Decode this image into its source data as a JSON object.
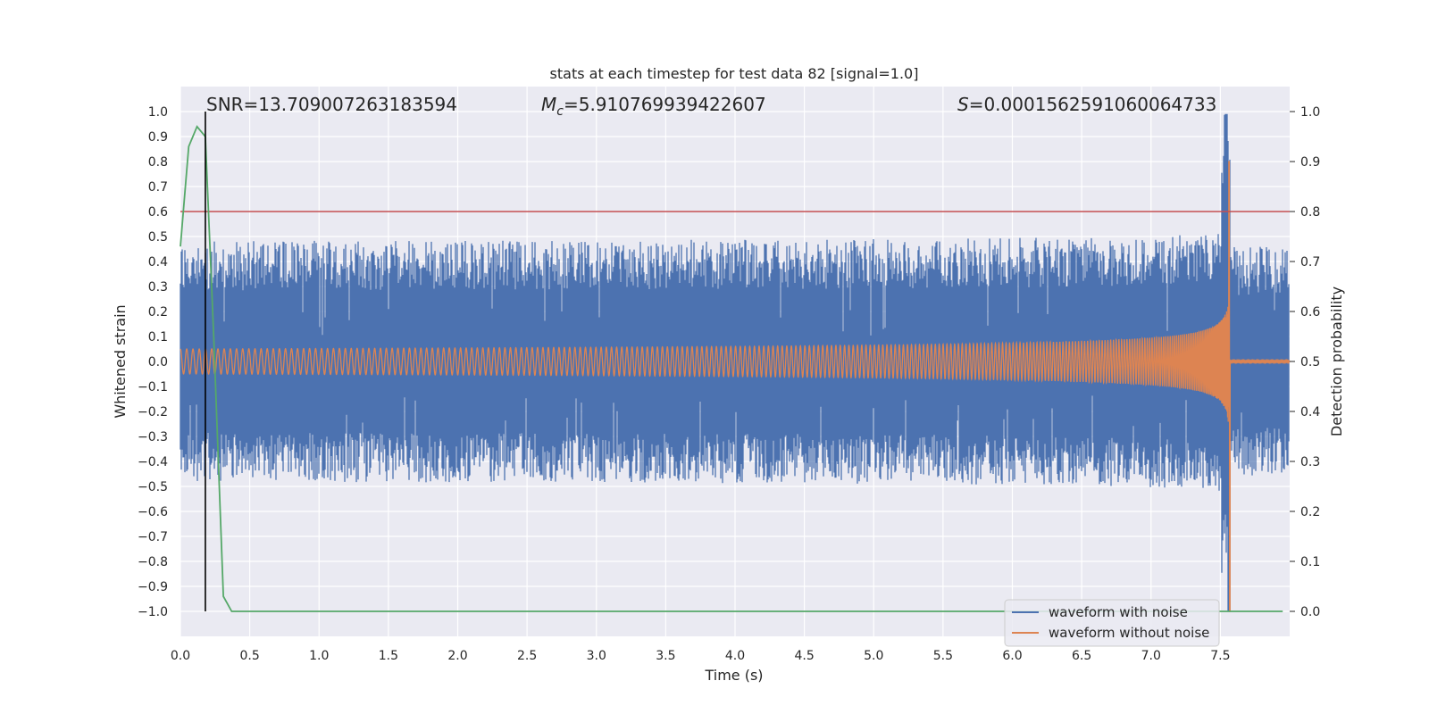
{
  "chart_data": {
    "type": "line",
    "title": "stats at each timestep for test data 82 [signal=1.0]",
    "xlabel": "Time (s)",
    "ylabel_left": "Whitened strain",
    "ylabel_right": "Detection probability",
    "xlim": [
      0.0,
      8.0
    ],
    "ylim_left": [
      -1.1,
      1.1
    ],
    "ylim_right": [
      -0.05,
      1.05
    ],
    "x_ticks": [
      "0.0",
      "0.5",
      "1.0",
      "1.5",
      "2.0",
      "2.5",
      "3.0",
      "3.5",
      "4.0",
      "4.5",
      "5.0",
      "5.5",
      "6.0",
      "6.5",
      "7.0",
      "7.5"
    ],
    "y_ticks_left": [
      "1.0",
      "0.9",
      "0.8",
      "0.7",
      "0.6",
      "0.5",
      "0.4",
      "0.3",
      "0.2",
      "0.1",
      "0.0",
      "−0.1",
      "−0.2",
      "−0.3",
      "−0.4",
      "−0.5",
      "−0.6",
      "−0.7",
      "−0.8",
      "−0.9",
      "−1.0"
    ],
    "y_ticks_right": [
      "1.0",
      "0.9",
      "0.8",
      "0.7",
      "0.6",
      "0.5",
      "0.4",
      "0.3",
      "0.2",
      "0.1",
      "0.0"
    ],
    "annotations": {
      "snr": "SNR=13.709007263183594",
      "mc_symbol": "M",
      "mc_sub": "c",
      "mc_value": "=5.910769939422607",
      "s_symbol": "S",
      "s_value": "=0.0001562591060064733"
    },
    "threshold_line": {
      "y": 0.8,
      "color": "#c44e52"
    },
    "marker_vline": {
      "x": 0.18,
      "color": "#000000"
    },
    "merger_time": 7.57,
    "series": [
      {
        "name": "waveform with noise",
        "color": "#4c72b0",
        "noise_envelope_base": 0.36,
        "peak_max": 0.99,
        "peak_min": -1.0
      },
      {
        "name": "waveform without noise",
        "color": "#dd8452",
        "amplitude_start": 0.05,
        "amplitude_peak": 0.8,
        "amplitude_min_peak": -1.0
      },
      {
        "name": "detection probability",
        "color": "#55a868",
        "x": [
          0.0,
          0.06,
          0.12,
          0.18,
          0.24,
          0.31,
          0.37,
          7.95
        ],
        "y": [
          0.73,
          0.93,
          0.97,
          0.95,
          0.55,
          0.03,
          0.0,
          0.0
        ]
      }
    ],
    "legend": {
      "position": "lower right",
      "entries": [
        "waveform with noise",
        "waveform without noise"
      ]
    }
  }
}
